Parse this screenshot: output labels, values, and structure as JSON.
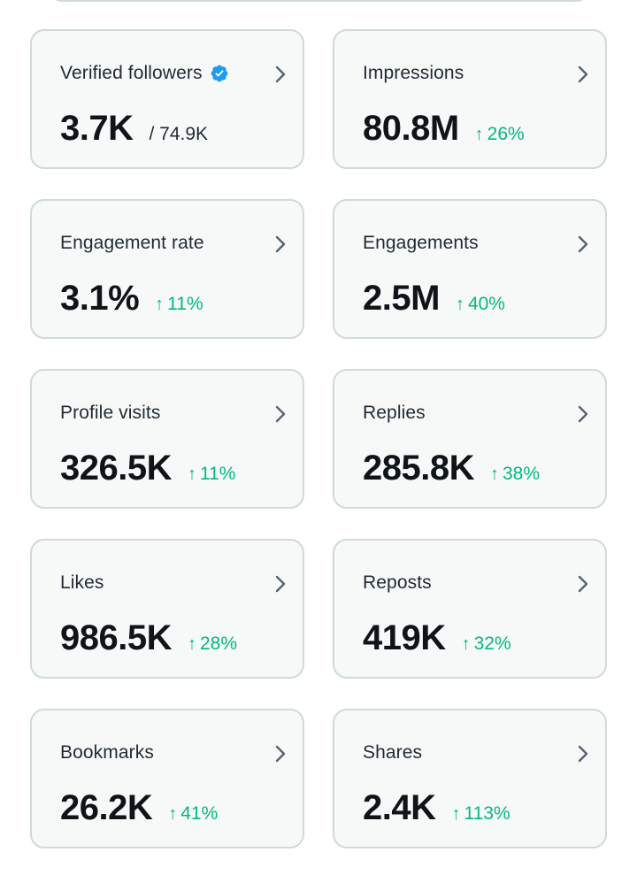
{
  "colors": {
    "positive": "#00ba7c",
    "verified": "#1d9bf0",
    "card_bg": "#f7f9f9",
    "card_border": "#cfd9de",
    "chevron": "#536471"
  },
  "cards": [
    {
      "label": "Verified followers",
      "value": "3.7K",
      "sub": "/ 74.9K",
      "verified": true
    },
    {
      "label": "Impressions",
      "value": "80.8M",
      "change": "26%"
    },
    {
      "label": "Engagement rate",
      "value": "3.1%",
      "change": "11%"
    },
    {
      "label": "Engagements",
      "value": "2.5M",
      "change": "40%"
    },
    {
      "label": "Profile visits",
      "value": "326.5K",
      "change": "11%"
    },
    {
      "label": "Replies",
      "value": "285.8K",
      "change": "38%"
    },
    {
      "label": "Likes",
      "value": "986.5K",
      "change": "28%"
    },
    {
      "label": "Reposts",
      "value": "419K",
      "change": "32%"
    },
    {
      "label": "Bookmarks",
      "value": "26.2K",
      "change": "41%"
    },
    {
      "label": "Shares",
      "value": "2.4K",
      "change": "113%"
    }
  ]
}
